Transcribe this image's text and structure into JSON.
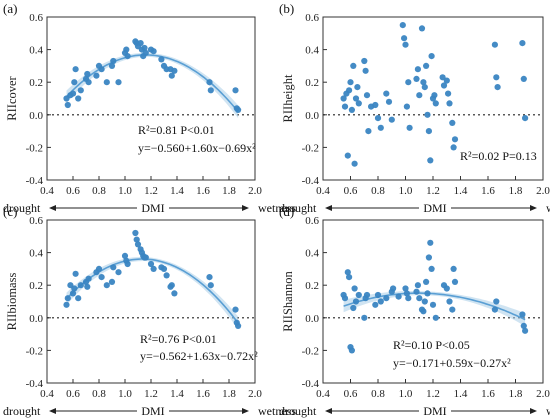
{
  "chart_data": [
    {
      "type": "scatter",
      "panel_label": "(a)",
      "ylabel": "RIIcover",
      "xlim": [
        0.4,
        2.0
      ],
      "ylim": [
        -0.4,
        0.6
      ],
      "xticks": [
        "0.4",
        "0.6",
        "0.8",
        "1.0",
        "1.2",
        "1.4",
        "1.6",
        "1.8",
        "2.0"
      ],
      "yticks": [
        "-0.4",
        "-0.2",
        "0.0",
        "0.2",
        "0.4",
        "0.6"
      ],
      "reference_line": 0,
      "xlabel_left": "drought",
      "xlabel_center": "DMI",
      "xlabel_right": "wetness",
      "annotation_lines": [
        "R²=0.81 P<0.01",
        "y=−0.560+1.60x−0.69x²"
      ],
      "fit": {
        "a": -0.56,
        "b": 1.6,
        "c": -0.69
      },
      "color": "#3a85c2",
      "points": [
        [
          0.55,
          0.1
        ],
        [
          0.56,
          0.06
        ],
        [
          0.58,
          0.12
        ],
        [
          0.6,
          0.13
        ],
        [
          0.61,
          0.2
        ],
        [
          0.62,
          0.28
        ],
        [
          0.64,
          0.1
        ],
        [
          0.66,
          0.15
        ],
        [
          0.7,
          0.22
        ],
        [
          0.71,
          0.25
        ],
        [
          0.72,
          0.2
        ],
        [
          0.78,
          0.24
        ],
        [
          0.8,
          0.3
        ],
        [
          0.82,
          0.28
        ],
        [
          0.86,
          0.2
        ],
        [
          0.9,
          0.3
        ],
        [
          0.91,
          0.33
        ],
        [
          0.95,
          0.2
        ],
        [
          1.0,
          0.38
        ],
        [
          1.01,
          0.4
        ],
        [
          1.02,
          0.36
        ],
        [
          1.08,
          0.45
        ],
        [
          1.09,
          0.44
        ],
        [
          1.1,
          0.42
        ],
        [
          1.12,
          0.44
        ],
        [
          1.13,
          0.4
        ],
        [
          1.14,
          0.36
        ],
        [
          1.15,
          0.41
        ],
        [
          1.16,
          0.38
        ],
        [
          1.2,
          0.4
        ],
        [
          1.22,
          0.39
        ],
        [
          1.28,
          0.34
        ],
        [
          1.3,
          0.3
        ],
        [
          1.32,
          0.28
        ],
        [
          1.35,
          0.28
        ],
        [
          1.36,
          0.24
        ],
        [
          1.38,
          0.27
        ],
        [
          1.65,
          0.2
        ],
        [
          1.66,
          0.15
        ],
        [
          1.85,
          0.15
        ],
        [
          1.86,
          0.04
        ],
        [
          1.87,
          0.03
        ]
      ]
    },
    {
      "type": "scatter",
      "panel_label": "(b)",
      "ylabel": "RIIheight",
      "xlim": [
        0.4,
        2.0
      ],
      "ylim": [
        -0.4,
        0.6
      ],
      "xticks": [
        "0.4",
        "0.6",
        "0.8",
        "1.0",
        "1.2",
        "1.4",
        "1.6",
        "1.8",
        "2.0"
      ],
      "yticks": [
        "-0.4",
        "-0.2",
        "0.0",
        "0.2",
        "0.4",
        "0.6"
      ],
      "reference_line": 0,
      "xlabel_left": "drought",
      "xlabel_center": "DMI",
      "xlabel_right": "wetness",
      "annotation_lines": [
        "R²=0.02 P=0.13"
      ],
      "fit": null,
      "color": "#3a85c2",
      "points": [
        [
          0.55,
          0.1
        ],
        [
          0.56,
          0.05
        ],
        [
          0.57,
          0.13
        ],
        [
          0.58,
          -0.25
        ],
        [
          0.59,
          0.15
        ],
        [
          0.6,
          0.2
        ],
        [
          0.61,
          0.03
        ],
        [
          0.62,
          0.3
        ],
        [
          0.63,
          -0.3
        ],
        [
          0.64,
          0.1
        ],
        [
          0.65,
          0.17
        ],
        [
          0.66,
          0.07
        ],
        [
          0.7,
          0.33
        ],
        [
          0.71,
          0.27
        ],
        [
          0.72,
          0.12
        ],
        [
          0.73,
          -0.1
        ],
        [
          0.75,
          0.05
        ],
        [
          0.78,
          0.06
        ],
        [
          0.8,
          -0.02
        ],
        [
          0.82,
          -0.08
        ],
        [
          0.86,
          0.13
        ],
        [
          0.88,
          0.08
        ],
        [
          0.9,
          -0.03
        ],
        [
          0.98,
          0.55
        ],
        [
          0.99,
          0.47
        ],
        [
          1.0,
          0.43
        ],
        [
          1.01,
          0.05
        ],
        [
          1.02,
          0.2
        ],
        [
          1.03,
          -0.08
        ],
        [
          1.08,
          0.22
        ],
        [
          1.09,
          0.28
        ],
        [
          1.1,
          0.12
        ],
        [
          1.12,
          0.53
        ],
        [
          1.13,
          0.2
        ],
        [
          1.14,
          0.17
        ],
        [
          1.15,
          0.3
        ],
        [
          1.16,
          0.0
        ],
        [
          1.17,
          -0.1
        ],
        [
          1.18,
          -0.28
        ],
        [
          1.19,
          0.36
        ],
        [
          1.2,
          0.1
        ],
        [
          1.21,
          0.12
        ],
        [
          1.22,
          0.07
        ],
        [
          1.27,
          0.23
        ],
        [
          1.28,
          0.18
        ],
        [
          1.3,
          0.21
        ],
        [
          1.31,
          0.13
        ],
        [
          1.32,
          0.07
        ],
        [
          1.34,
          -0.05
        ],
        [
          1.35,
          -0.2
        ],
        [
          1.36,
          -0.15
        ],
        [
          1.65,
          0.43
        ],
        [
          1.66,
          0.23
        ],
        [
          1.67,
          0.17
        ],
        [
          1.85,
          0.44
        ],
        [
          1.86,
          0.22
        ],
        [
          1.87,
          -0.02
        ]
      ]
    },
    {
      "type": "scatter",
      "panel_label": "(c)",
      "ylabel": "RIIbiomass",
      "xlim": [
        0.4,
        2.0
      ],
      "ylim": [
        -0.4,
        0.6
      ],
      "xticks": [
        "0.4",
        "0.6",
        "0.8",
        "1.0",
        "1.2",
        "1.4",
        "1.6",
        "1.8",
        "2.0"
      ],
      "yticks": [
        "-0.4",
        "-0.2",
        "0.0",
        "0.2",
        "0.4",
        "0.6"
      ],
      "reference_line": 0,
      "xlabel_left": "drought",
      "xlabel_center": "DMI",
      "xlabel_right": "wetness",
      "annotation_lines": [
        "R²=0.76 P<0.01",
        "y=−0.562+1.63x−0.72x²"
      ],
      "fit": {
        "a": -0.562,
        "b": 1.63,
        "c": -0.72
      },
      "color": "#3a85c2",
      "points": [
        [
          0.55,
          0.08
        ],
        [
          0.56,
          0.12
        ],
        [
          0.58,
          0.2
        ],
        [
          0.6,
          0.15
        ],
        [
          0.61,
          0.18
        ],
        [
          0.62,
          0.27
        ],
        [
          0.64,
          0.12
        ],
        [
          0.66,
          0.2
        ],
        [
          0.7,
          0.22
        ],
        [
          0.71,
          0.19
        ],
        [
          0.72,
          0.24
        ],
        [
          0.78,
          0.28
        ],
        [
          0.8,
          0.3
        ],
        [
          0.82,
          0.25
        ],
        [
          0.86,
          0.2
        ],
        [
          0.9,
          0.22
        ],
        [
          0.91,
          0.31
        ],
        [
          0.95,
          0.28
        ],
        [
          1.0,
          0.38
        ],
        [
          1.01,
          0.35
        ],
        [
          1.02,
          0.33
        ],
        [
          1.08,
          0.52
        ],
        [
          1.09,
          0.48
        ],
        [
          1.1,
          0.45
        ],
        [
          1.12,
          0.42
        ],
        [
          1.13,
          0.4
        ],
        [
          1.14,
          0.38
        ],
        [
          1.15,
          0.37
        ],
        [
          1.16,
          0.37
        ],
        [
          1.2,
          0.33
        ],
        [
          1.22,
          0.3
        ],
        [
          1.28,
          0.31
        ],
        [
          1.3,
          0.3
        ],
        [
          1.32,
          0.26
        ],
        [
          1.35,
          0.19
        ],
        [
          1.36,
          0.2
        ],
        [
          1.38,
          0.15
        ],
        [
          1.65,
          0.25
        ],
        [
          1.66,
          0.2
        ],
        [
          1.85,
          0.05
        ],
        [
          1.86,
          -0.03
        ],
        [
          1.87,
          -0.05
        ]
      ]
    },
    {
      "type": "scatter",
      "panel_label": "(d)",
      "ylabel": "RIIShannon",
      "xlim": [
        0.4,
        2.0
      ],
      "ylim": [
        -0.4,
        0.6
      ],
      "xticks": [
        "0.4",
        "0.6",
        "0.8",
        "1.0",
        "1.2",
        "1.4",
        "1.6",
        "1.8",
        "2.0"
      ],
      "yticks": [
        "-0.4",
        "-0.2",
        "0.0",
        "0.2",
        "0.4",
        "0.6"
      ],
      "reference_line": 0,
      "xlabel_left": "drought",
      "xlabel_center": "DMI",
      "xlabel_right": "wetness",
      "annotation_lines": [
        "R²=0.10 P<0.05",
        "y=−0.171+0.59x−0.27x²"
      ],
      "fit": {
        "a": -0.171,
        "b": 0.59,
        "c": -0.27
      },
      "color": "#3a85c2",
      "points": [
        [
          0.55,
          0.14
        ],
        [
          0.56,
          0.12
        ],
        [
          0.58,
          0.28
        ],
        [
          0.59,
          0.25
        ],
        [
          0.6,
          -0.18
        ],
        [
          0.61,
          -0.2
        ],
        [
          0.62,
          0.06
        ],
        [
          0.63,
          0.18
        ],
        [
          0.64,
          0.1
        ],
        [
          0.66,
          0.14
        ],
        [
          0.7,
          0.0
        ],
        [
          0.71,
          0.12
        ],
        [
          0.72,
          0.14
        ],
        [
          0.78,
          0.08
        ],
        [
          0.8,
          0.14
        ],
        [
          0.82,
          0.1
        ],
        [
          0.86,
          0.12
        ],
        [
          0.9,
          0.16
        ],
        [
          0.91,
          0.18
        ],
        [
          0.95,
          0.13
        ],
        [
          1.0,
          0.18
        ],
        [
          1.01,
          0.15
        ],
        [
          1.02,
          0.12
        ],
        [
          1.08,
          0.16
        ],
        [
          1.09,
          0.2
        ],
        [
          1.1,
          0.12
        ],
        [
          1.12,
          0.05
        ],
        [
          1.13,
          0.04
        ],
        [
          1.14,
          0.1
        ],
        [
          1.15,
          0.22
        ],
        [
          1.16,
          0.15
        ],
        [
          1.17,
          0.37
        ],
        [
          1.18,
          0.46
        ],
        [
          1.19,
          0.3
        ],
        [
          1.2,
          0.08
        ],
        [
          1.22,
          0.0
        ],
        [
          1.28,
          0.2
        ],
        [
          1.3,
          0.18
        ],
        [
          1.32,
          0.1
        ],
        [
          1.34,
          0.05
        ],
        [
          1.35,
          0.3
        ],
        [
          1.36,
          0.22
        ],
        [
          1.65,
          0.05
        ],
        [
          1.66,
          0.1
        ],
        [
          1.85,
          0.02
        ],
        [
          1.86,
          -0.05
        ],
        [
          1.87,
          -0.08
        ]
      ]
    }
  ]
}
